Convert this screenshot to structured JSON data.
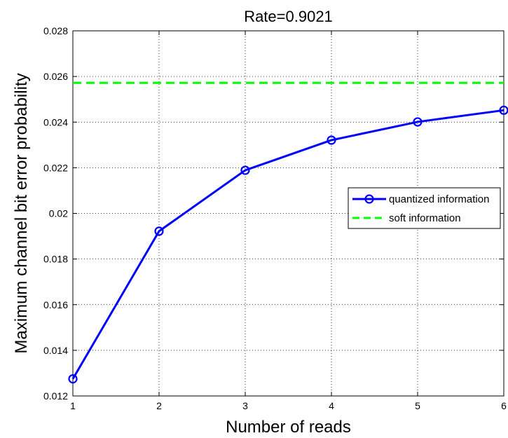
{
  "chart_data": {
    "type": "line",
    "title": "Rate=0.9021",
    "xlabel": "Number of reads",
    "ylabel": "Maximum channel bit error probability",
    "xlim": [
      1,
      6
    ],
    "ylim": [
      0.012,
      0.028
    ],
    "xticks": [
      "1",
      "2",
      "3",
      "4",
      "5",
      "6"
    ],
    "yticks": [
      "0.012",
      "0.014",
      "0.016",
      "0.018",
      "0.02",
      "0.022",
      "0.024",
      "0.026",
      "0.028"
    ],
    "grid": true,
    "legend_position": "right",
    "x": [
      1,
      2,
      3,
      4,
      5,
      6
    ],
    "series": [
      {
        "name": "quantized information",
        "color": "#0000ff",
        "style": "solid",
        "marker": "circle",
        "values": [
          0.01275,
          0.01922,
          0.02189,
          0.02321,
          0.02401,
          0.02452
        ]
      },
      {
        "name": "soft information",
        "color": "#00ff00",
        "style": "dashed",
        "marker": "none",
        "values": [
          0.02572,
          0.02572,
          0.02572,
          0.02572,
          0.02572,
          0.02572
        ]
      }
    ]
  }
}
